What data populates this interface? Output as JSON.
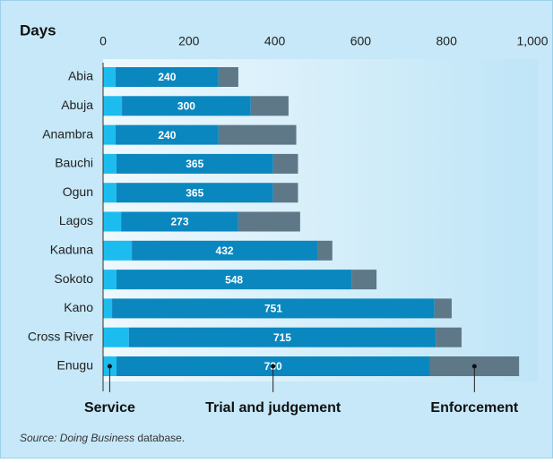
{
  "chart_data": {
    "type": "stacked_bar_horizontal",
    "axis_title": "Days",
    "categories": [
      "Abia",
      "Abuja",
      "Anambra",
      "Bauchi",
      "Ogun",
      "Lagos",
      "Kaduna",
      "Sokoto",
      "Kano",
      "Cross River",
      "Enugu"
    ],
    "series": [
      {
        "name": "Service",
        "color": "#1cbcef",
        "values": [
          29,
          44,
          29,
          31,
          31,
          42,
          67,
          31,
          21,
          60,
          31
        ]
      },
      {
        "name": "Trial and judgement",
        "color": "#0b87bf",
        "values": [
          240,
          300,
          240,
          365,
          365,
          273,
          432,
          548,
          751,
          715,
          730
        ]
      },
      {
        "name": "Enforcement",
        "color": "#5e7888",
        "values": [
          46,
          88,
          181,
          58,
          58,
          144,
          35,
          58,
          40,
          60,
          208
        ]
      }
    ],
    "xlim": [
      0,
      1000
    ],
    "xticks": [
      0,
      200,
      400,
      600,
      800,
      {
        "value": 1000,
        "label": "1,000"
      }
    ],
    "show_value_labels_on_series": 1,
    "source": {
      "italic": "Source: Doing Business",
      "text": "database."
    }
  }
}
